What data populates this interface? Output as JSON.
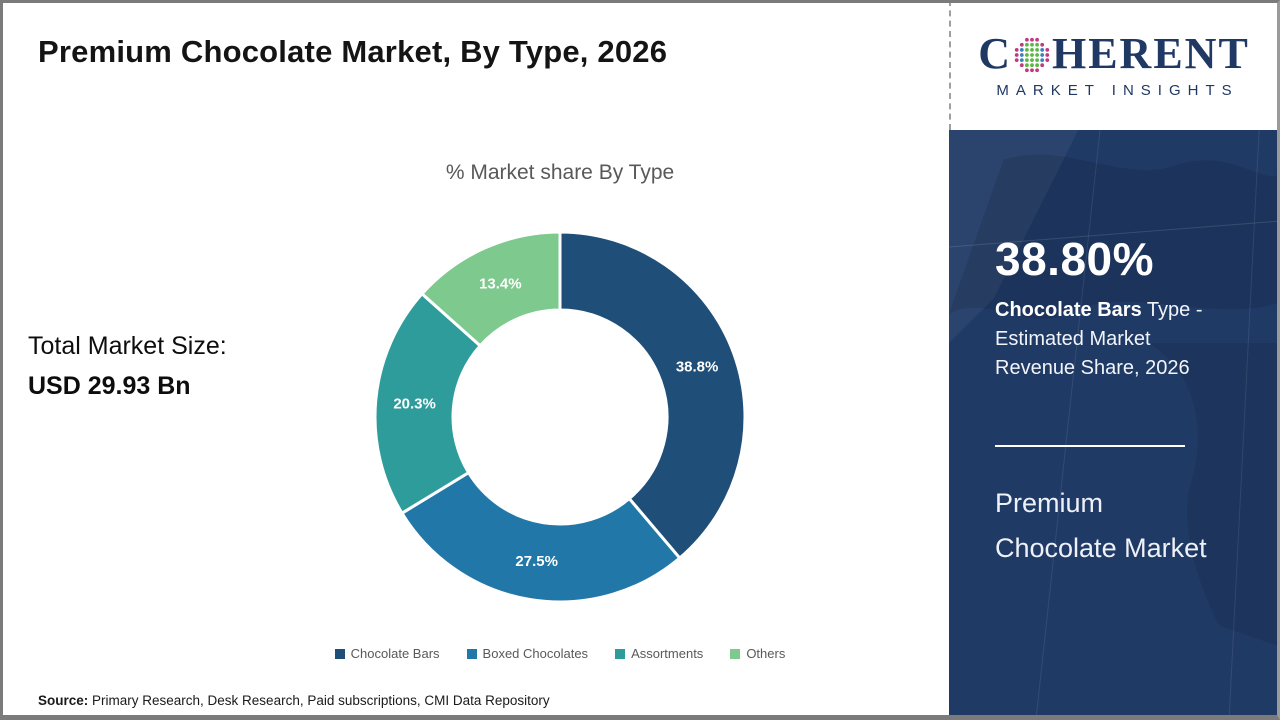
{
  "page": {
    "title": "Premium Chocolate Market, By Type, 2026",
    "total_market_size_label": "Total Market Size:",
    "total_market_size_value": "USD 29.93 Bn",
    "source_label": "Source:",
    "source_text": " Primary Research, Desk Research, Paid subscriptions, CMI Data Repository"
  },
  "logo": {
    "brand_prefix": "C",
    "brand_suffix": "HERENT",
    "brand_subtitle": "MARKET INSIGHTS",
    "brand_color": "#1F3864",
    "globe_dot_colors": {
      "inner": "#5CB947",
      "middle": "#3F7FC1",
      "outer": "#C23A7E"
    }
  },
  "sidebar": {
    "background_color": "#203A66",
    "stat_value": "38.80%",
    "stat_bold": "Chocolate Bars",
    "stat_rest": " Type - Estimated Market Revenue Share, 2026",
    "market_name_line1": "Premium",
    "market_name_line2": "Chocolate Market"
  },
  "chart_data": {
    "type": "pie",
    "donut": true,
    "title": "% Market share By Type",
    "title_color": "#595959",
    "categories": [
      "Chocolate Bars",
      "Boxed Chocolates",
      "Assortments",
      "Others"
    ],
    "values": [
      38.8,
      27.5,
      20.3,
      13.4
    ],
    "labels": [
      "38.8%",
      "27.5%",
      "20.3%",
      "13.4%"
    ],
    "colors": [
      "#1F4E79",
      "#2077A8",
      "#2F9C9C",
      "#7EC98E"
    ],
    "start_angle_deg": 0,
    "direction": "clockwise",
    "outer_radius": 185,
    "inner_radius": 107,
    "label_radius": 146,
    "slice_gap_stroke": "#ffffff",
    "legend_position": "bottom",
    "legend_text_color": "#595959"
  }
}
